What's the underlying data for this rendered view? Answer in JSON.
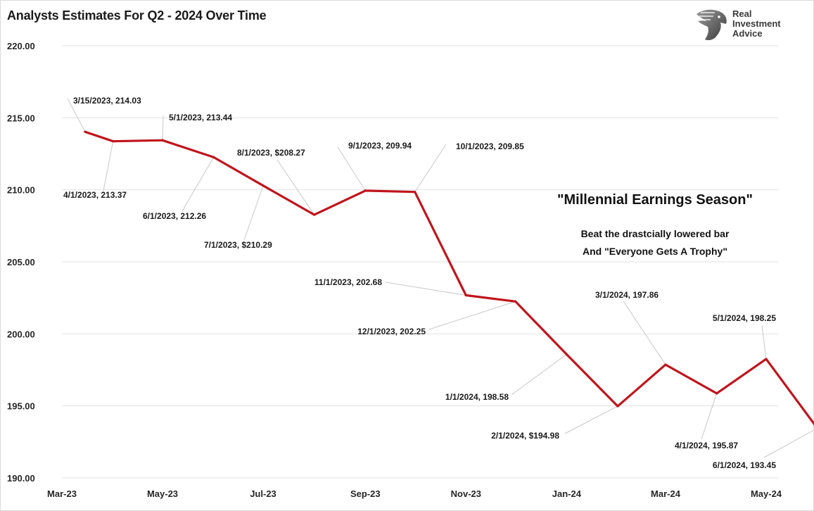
{
  "chart_data": {
    "type": "line",
    "title": "Analysts Estimates For Q2 - 2024 Over Time",
    "xlabel": "",
    "ylabel": "",
    "ylim": [
      190,
      220
    ],
    "yticks": [
      "190.00",
      "195.00",
      "200.00",
      "205.00",
      "210.00",
      "215.00",
      "220.00"
    ],
    "xticks": [
      {
        "label": "Mar-23",
        "date": "2023-03-01"
      },
      {
        "label": "May-23",
        "date": "2023-05-01"
      },
      {
        "label": "Jul-23",
        "date": "2023-07-01"
      },
      {
        "label": "Sep-23",
        "date": "2023-09-01"
      },
      {
        "label": "Nov-23",
        "date": "2023-11-01"
      },
      {
        "label": "Jan-24",
        "date": "2024-01-01"
      },
      {
        "label": "Mar-24",
        "date": "2024-03-01"
      },
      {
        "label": "May-24",
        "date": "2024-05-01"
      }
    ],
    "grid": true,
    "line_color": "#c0141c",
    "series": [
      {
        "points": [
          {
            "x": "2023-03-15",
            "y": 214.03,
            "label": "3/15/2023,  214.03"
          },
          {
            "x": "2023-04-01",
            "y": 213.37,
            "label": "4/1/2023,  213.37"
          },
          {
            "x": "2023-05-01",
            "y": 213.44,
            "label": "5/1/2023,  213.44"
          },
          {
            "x": "2023-06-01",
            "y": 212.26,
            "label": "6/1/2023,  212.26"
          },
          {
            "x": "2023-07-01",
            "y": 210.29,
            "label": "7/1/2023, $210.29"
          },
          {
            "x": "2023-08-01",
            "y": 208.27,
            "label": "8/1/2023, $208.27"
          },
          {
            "x": "2023-09-01",
            "y": 209.94,
            "label": "9/1/2023,  209.94"
          },
          {
            "x": "2023-10-01",
            "y": 209.85,
            "label": "10/1/2023,  209.85"
          },
          {
            "x": "2023-11-01",
            "y": 202.68,
            "label": "11/1/2023,  202.68"
          },
          {
            "x": "2023-12-01",
            "y": 202.25,
            "label": "12/1/2023,  202.25"
          },
          {
            "x": "2024-01-01",
            "y": 198.58,
            "label": "1/1/2024,  198.58"
          },
          {
            "x": "2024-02-01",
            "y": 194.98,
            "label": "2/1/2024, $194.98"
          },
          {
            "x": "2024-03-01",
            "y": 197.86,
            "label": "3/1/2024,  197.86"
          },
          {
            "x": "2024-04-01",
            "y": 195.87,
            "label": "4/1/2024,  195.87"
          },
          {
            "x": "2024-05-01",
            "y": 198.25,
            "label": "5/1/2024,  198.25"
          },
          {
            "x": "2024-06-01",
            "y": 193.45,
            "label": "6/1/2024,  193.45"
          }
        ]
      }
    ],
    "annotation": {
      "headline": "\"Millennial Earnings Season\"",
      "line1": "Beat the drastcially lowered bar",
      "line2": "And \"Everyone Gets A Trophy\""
    }
  },
  "logo": {
    "line1": "Real",
    "line2": "Investment",
    "line3": "Advice",
    "icon": "eagle-head-icon"
  }
}
